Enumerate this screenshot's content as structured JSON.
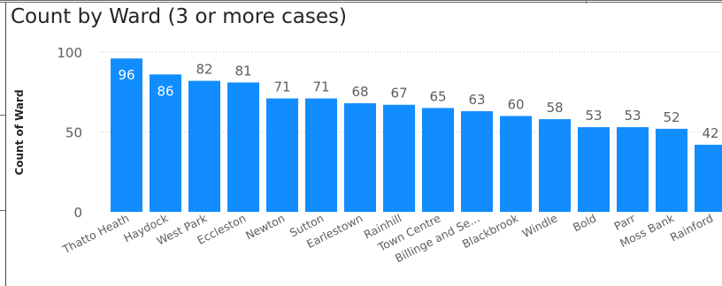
{
  "chart_data": {
    "type": "bar",
    "title": "Count by Ward (3 or more cases)",
    "xlabel": "",
    "ylabel": "Count of Ward",
    "categories": [
      "Thatto Heath",
      "Haydock",
      "West Park",
      "Eccleston",
      "Newton",
      "Sutton",
      "Earlestown",
      "Rainhill",
      "Town Centre",
      "Billinge and Se...",
      "Blackbrook",
      "Windle",
      "Bold",
      "Parr",
      "Moss Bank",
      "Rainford"
    ],
    "values": [
      96,
      86,
      82,
      81,
      71,
      71,
      68,
      67,
      65,
      63,
      60,
      58,
      53,
      53,
      52,
      42
    ],
    "ylim": [
      0,
      100
    ],
    "yticks": [
      0,
      50,
      100
    ],
    "grid": true,
    "bar_color": "#118DFF",
    "label_color_inside": "#ffffff",
    "label_color_outside": "#605E5C"
  }
}
